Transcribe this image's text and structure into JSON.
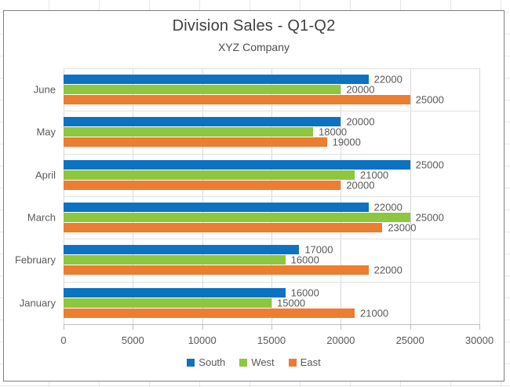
{
  "chart_data": {
    "type": "bar",
    "orientation": "horizontal",
    "title": "Division Sales - Q1-Q2",
    "subtitle": "XYZ Company",
    "categories": [
      "June",
      "May",
      "April",
      "March",
      "February",
      "January"
    ],
    "series": [
      {
        "name": "South",
        "color": "#0d72c2",
        "values": [
          22000,
          20000,
          25000,
          22000,
          17000,
          16000
        ]
      },
      {
        "name": "West",
        "color": "#8dc63f",
        "values": [
          20000,
          18000,
          21000,
          25000,
          16000,
          15000
        ]
      },
      {
        "name": "East",
        "color": "#ed7d31",
        "values": [
          25000,
          19000,
          20000,
          23000,
          22000,
          21000
        ]
      }
    ],
    "xlim": [
      0,
      30000
    ],
    "x_ticks": [
      0,
      5000,
      10000,
      15000,
      20000,
      25000,
      30000
    ],
    "x_tick_labels": [
      "0",
      "5000",
      "10000",
      "15000",
      "20000",
      "25000",
      "30000"
    ],
    "grid": "vertical-major-and-category-boundaries",
    "legend_position": "bottom",
    "data_labels": "outside-end",
    "colors": {
      "gridline": "#d9d9d9",
      "axis_line": "#bfbfbf",
      "label_text": "#595959",
      "title_text": "#404040"
    }
  }
}
